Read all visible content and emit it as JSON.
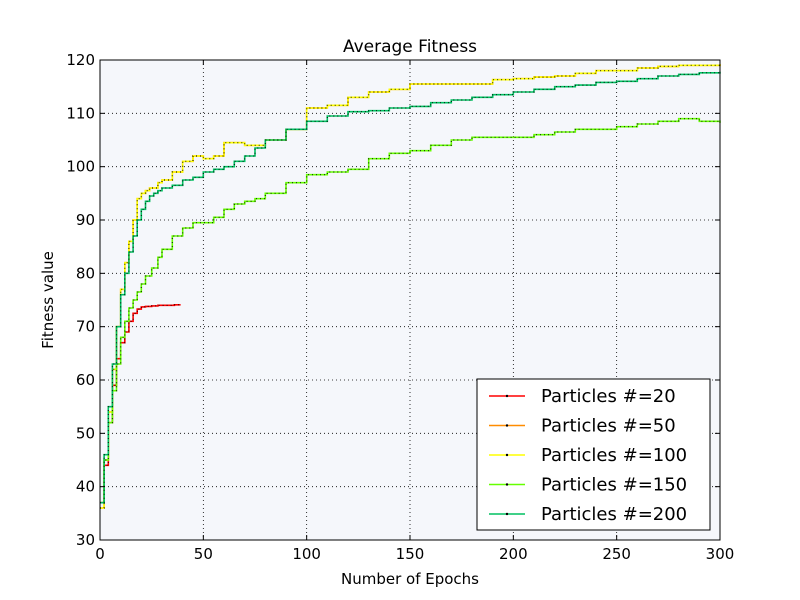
{
  "chart_data": {
    "type": "line",
    "title": "Average Fitness",
    "xlabel": "Number of Epochs",
    "ylabel": "Fitness value",
    "xlim": [
      0,
      300
    ],
    "ylim": [
      30,
      120
    ],
    "xticks": [
      0,
      50,
      100,
      150,
      200,
      250,
      300
    ],
    "yticks": [
      30,
      40,
      50,
      60,
      70,
      80,
      90,
      100,
      110,
      120
    ],
    "grid": true,
    "legend_position": "lower-right",
    "plot_background": "#f5f7fb",
    "series": [
      {
        "name": "Particles #=20",
        "color": "#ff0000",
        "x": [
          0,
          2,
          4,
          6,
          8,
          10,
          12,
          14,
          16,
          18,
          20,
          22,
          25,
          28,
          30,
          33,
          36,
          39
        ],
        "y": [
          37,
          44,
          52,
          59,
          64,
          67,
          69,
          71,
          72.5,
          73.3,
          73.7,
          73.8,
          73.9,
          74.0,
          74.0,
          74.0,
          74.1,
          74.1
        ]
      },
      {
        "name": "Particles #=50",
        "color": "#ff8c00",
        "x": [
          0,
          2,
          4,
          6,
          8,
          10,
          12,
          14,
          16,
          18,
          20,
          22,
          24,
          26,
          28,
          30,
          35,
          40,
          45,
          50,
          55,
          60,
          70,
          80,
          90,
          100,
          110,
          120,
          130,
          140,
          150,
          160,
          170,
          180,
          190,
          200,
          210,
          220,
          230,
          240,
          250,
          260,
          270,
          280,
          290,
          300
        ],
        "y": [
          36,
          45,
          54,
          62,
          70,
          77,
          82,
          86,
          90,
          94,
          95,
          95.5,
          96,
          96,
          97,
          97.5,
          99,
          101,
          102,
          101.5,
          102,
          104.5,
          104,
          105,
          107,
          111,
          111.5,
          113,
          114,
          114.5,
          115.5,
          115.5,
          115.5,
          115.5,
          116.3,
          116.5,
          116.8,
          117,
          117.5,
          118,
          118,
          118.5,
          118.8,
          119,
          119,
          119.2
        ]
      },
      {
        "name": "Particles #=100",
        "color": "#ffff00",
        "x": [
          0,
          2,
          4,
          6,
          8,
          10,
          12,
          14,
          16,
          18,
          20,
          22,
          24,
          26,
          28,
          30,
          35,
          40,
          45,
          50,
          55,
          60,
          70,
          80,
          90,
          100,
          110,
          120,
          130,
          140,
          150,
          160,
          170,
          180,
          190,
          200,
          210,
          220,
          230,
          240,
          250,
          260,
          270,
          280,
          290,
          300
        ],
        "y": [
          36,
          45,
          54,
          62,
          70,
          77,
          82,
          86,
          90,
          94,
          95,
          95.5,
          96,
          96,
          97,
          97.5,
          99,
          101,
          102,
          101.5,
          102,
          104.5,
          104,
          105,
          107,
          111,
          111.5,
          113,
          114,
          114.5,
          115.5,
          115.5,
          115.5,
          115.5,
          116.3,
          116.5,
          116.8,
          117,
          117.5,
          118,
          118,
          118.5,
          118.8,
          119,
          119,
          119.2
        ]
      },
      {
        "name": "Particles #=150",
        "color": "#66ff00",
        "x": [
          0,
          2,
          4,
          6,
          8,
          10,
          12,
          14,
          16,
          18,
          20,
          22,
          25,
          28,
          30,
          35,
          40,
          45,
          50,
          55,
          60,
          65,
          70,
          75,
          80,
          90,
          100,
          110,
          120,
          130,
          140,
          150,
          160,
          170,
          180,
          190,
          200,
          210,
          220,
          230,
          240,
          250,
          260,
          270,
          280,
          290,
          300
        ],
        "y": [
          37,
          45,
          52,
          58,
          63,
          68,
          71,
          73.5,
          75,
          76.5,
          78,
          79.5,
          81,
          83,
          84.5,
          87,
          88.5,
          89.5,
          89.5,
          90.5,
          92,
          93,
          93.5,
          94,
          95,
          97,
          98.5,
          99,
          99.5,
          101.5,
          102.5,
          103,
          104,
          105,
          105.5,
          105.5,
          105.5,
          106,
          106.5,
          107,
          107,
          107.5,
          108,
          108.5,
          109,
          108.5,
          108.2
        ]
      },
      {
        "name": "Particles #=200",
        "color": "#00c060",
        "x": [
          0,
          2,
          4,
          6,
          8,
          10,
          12,
          14,
          16,
          18,
          20,
          22,
          24,
          26,
          28,
          30,
          35,
          40,
          45,
          50,
          55,
          60,
          65,
          70,
          75,
          80,
          90,
          100,
          110,
          120,
          130,
          140,
          150,
          160,
          170,
          180,
          190,
          200,
          210,
          220,
          230,
          240,
          250,
          260,
          270,
          280,
          290,
          300
        ],
        "y": [
          37,
          46,
          55,
          63,
          70,
          76,
          80,
          84,
          87,
          90,
          92,
          93.5,
          94.5,
          95,
          95.5,
          96,
          96.5,
          97.5,
          98,
          99,
          99.5,
          100,
          101,
          102,
          103.5,
          105,
          107,
          108.5,
          109.5,
          110.3,
          110.5,
          111,
          111.3,
          112,
          112.5,
          113,
          113.5,
          114,
          114.5,
          115,
          115.3,
          115.8,
          116,
          116.5,
          117,
          117.3,
          117.6,
          117.8
        ]
      }
    ]
  }
}
